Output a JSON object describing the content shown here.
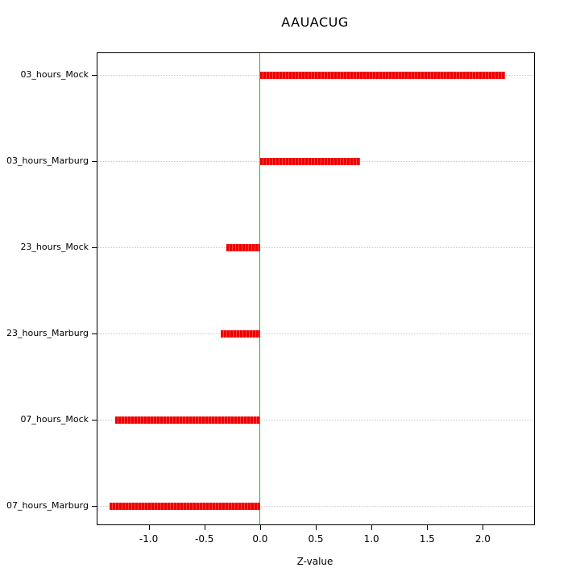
{
  "chart_data": {
    "type": "bar",
    "orientation": "horizontal",
    "title": "AAUACUG",
    "xlabel": "Z-value",
    "categories": [
      "03_hours_Mock",
      "03_hours_Marburg",
      "23_hours_Mock",
      "23_hours_Marburg",
      "07_hours_Mock",
      "07_hours_Marburg"
    ],
    "values": [
      2.2,
      0.9,
      -0.3,
      -0.35,
      -1.3,
      -1.35
    ],
    "xlim": [
      -1.46,
      2.46
    ],
    "xticks": [
      -1.0,
      -0.5,
      0.0,
      0.5,
      1.0,
      1.5,
      2.0
    ],
    "xtick_labels": [
      "-1.0",
      "-0.5",
      "0.0",
      "0.5",
      "1.0",
      "1.5",
      "2.0"
    ],
    "grid": true,
    "legend": "none",
    "bar_color": "#ff0000",
    "zero_line_color": "#00d300",
    "grid_color": "#c9c9c9"
  }
}
